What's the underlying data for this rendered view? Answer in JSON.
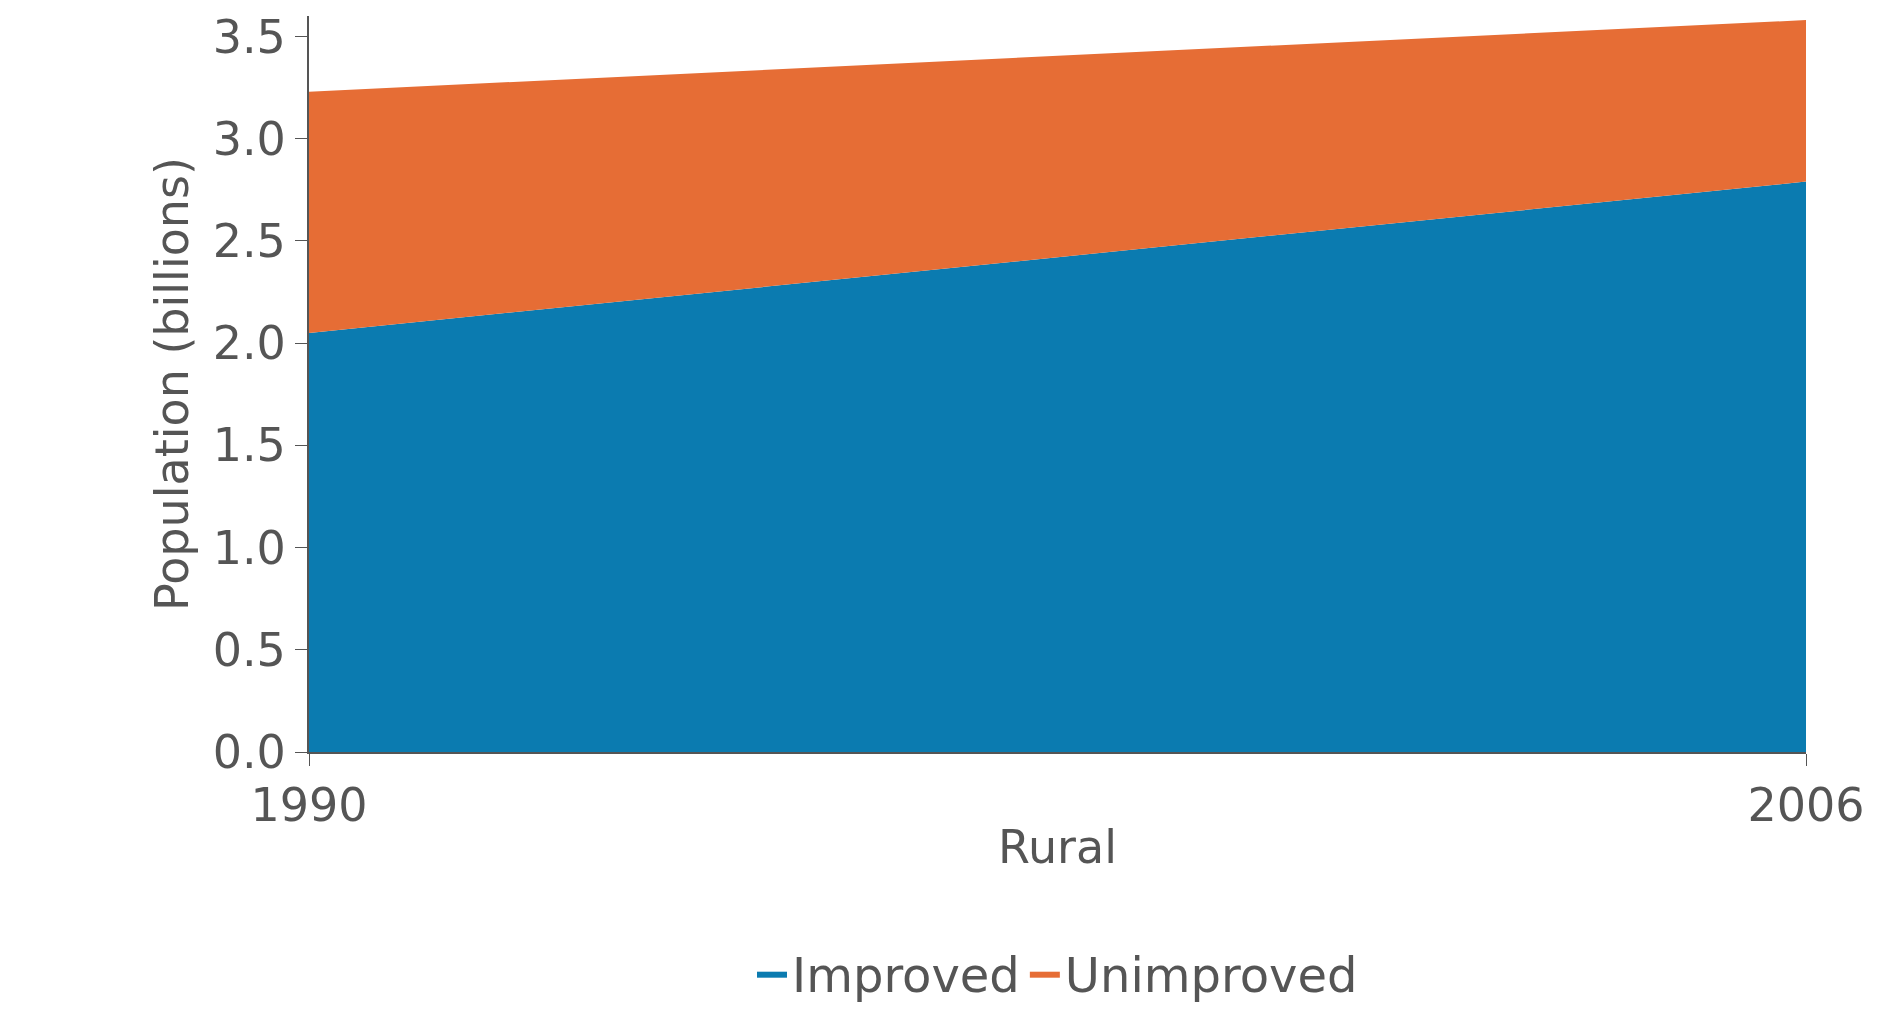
{
  "chart_data": {
    "type": "area",
    "stacked": true,
    "xlabel": "Rural",
    "ylabel": "Population (billions)",
    "x": [
      1990,
      2006
    ],
    "series": [
      {
        "name": "Improved",
        "color": "#0b7bb0",
        "values": [
          2.05,
          2.79
        ]
      },
      {
        "name": "Unimproved",
        "color": "#e66d35",
        "values": [
          1.18,
          0.79
        ]
      }
    ],
    "xlim": [
      1990,
      2006
    ],
    "xticks": [
      1990,
      2006
    ],
    "ylim": [
      0,
      3.6
    ],
    "yticks": [
      {
        "value": 0,
        "label": "0.0"
      },
      {
        "value": 0.5,
        "label": "0.5"
      },
      {
        "value": 1,
        "label": "1.0"
      },
      {
        "value": 1.5,
        "label": "1.5"
      },
      {
        "value": 2,
        "label": "2.0"
      },
      {
        "value": 2.5,
        "label": "2.5"
      },
      {
        "value": 3,
        "label": "3.0"
      },
      {
        "value": 3.5,
        "label": "3.5"
      }
    ],
    "legend": "bottom"
  }
}
